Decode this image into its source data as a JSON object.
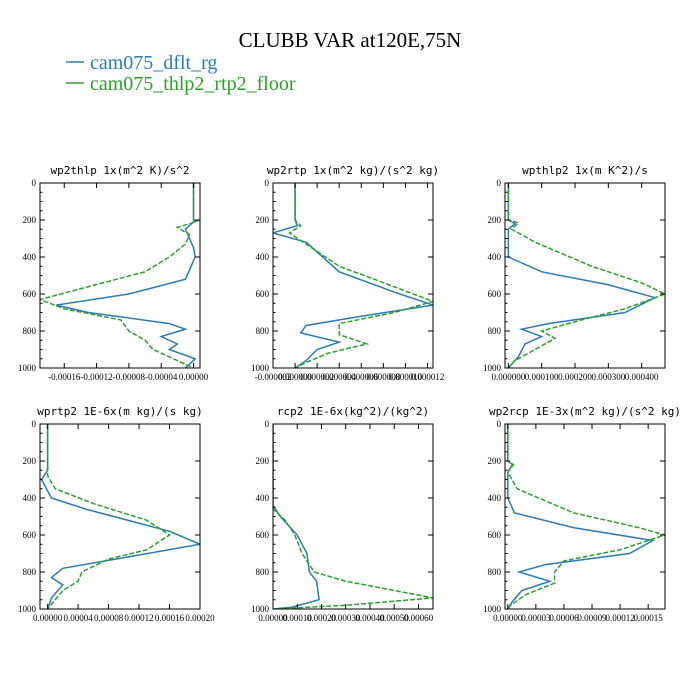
{
  "figure": {
    "title": "CLUBB VAR at120E,75N",
    "legend": [
      {
        "label": "cam075_dflt_rg",
        "color": "#2b7bb9",
        "dash": "solid"
      },
      {
        "label": "cam075_thlp2_rtp2_floor",
        "color": "#2ca02c",
        "dash": "dashed"
      }
    ]
  },
  "chart_data": [
    {
      "type": "line",
      "title": "wp2thlp  1x(m^2 K)/s^2",
      "xlim": [
        -0.00019,
        8e-06
      ],
      "ylim": [
        0,
        1000
      ],
      "y_inverted": true,
      "xticks": [
        -0.00016,
        -0.00012,
        -8e-05,
        -4e-05,
        0
      ],
      "xtick_labels": [
        "-0.00016",
        "-0.00012",
        "-0.00008",
        "-0.00004",
        "0.00000"
      ],
      "yticks": [
        0,
        200,
        400,
        600,
        800,
        1000
      ],
      "series": [
        {
          "name": "cam075_dflt_rg",
          "color": "#2b7bb9",
          "dash": "solid",
          "points": [
            [
              0,
              0
            ],
            [
              0,
              200
            ],
            [
              4e-06,
              205
            ],
            [
              0,
              210
            ],
            [
              -1e-05,
              250
            ],
            [
              -5e-06,
              300
            ],
            [
              0,
              350
            ],
            [
              2e-06,
              400
            ],
            [
              -1e-05,
              520
            ],
            [
              -8e-05,
              600
            ],
            [
              -0.00017,
              660
            ],
            [
              -0.00013,
              700
            ],
            [
              -3e-05,
              760
            ],
            [
              -1e-05,
              790
            ],
            [
              -4e-05,
              830
            ],
            [
              -2e-05,
              870
            ],
            [
              -3e-05,
              900
            ],
            [
              2e-06,
              950
            ],
            [
              -1e-05,
              1000
            ]
          ]
        },
        {
          "name": "cam075_thlp2_rtp2_floor",
          "color": "#2ca02c",
          "dash": "dashed",
          "points": [
            [
              0,
              0
            ],
            [
              0,
              200
            ],
            [
              3e-06,
              210
            ],
            [
              -2e-05,
              240
            ],
            [
              -5e-06,
              280
            ],
            [
              -1e-05,
              330
            ],
            [
              -3e-05,
              400
            ],
            [
              -6e-05,
              480
            ],
            [
              -0.00013,
              560
            ],
            [
              -0.00019,
              630
            ],
            [
              -0.00016,
              680
            ],
            [
              -9e-05,
              740
            ],
            [
              -8e-05,
              800
            ],
            [
              -6e-05,
              850
            ],
            [
              -5e-05,
              900
            ],
            [
              -2e-05,
              960
            ],
            [
              0,
              1000
            ]
          ]
        }
      ]
    },
    {
      "type": "line",
      "title": "wp2rtp  1x(m^2 kg)/(s^2 kg)",
      "xlim": [
        -2e-06,
        1.25e-05
      ],
      "ylim": [
        0,
        1000
      ],
      "y_inverted": true,
      "xticks": [
        -2e-06,
        0,
        2e-06,
        4e-06,
        6e-06,
        8e-06,
        1e-05,
        1.2e-05
      ],
      "xtick_labels": [
        "-0.000002",
        "0.000000",
        "0.000002",
        "0.000004",
        "0.000006",
        "0.000008",
        "0.000010",
        "0.000012"
      ],
      "yticks": [
        0,
        200,
        400,
        600,
        800,
        1000
      ],
      "series": [
        {
          "name": "cam075_dflt_rg",
          "color": "#2b7bb9",
          "dash": "solid",
          "points": [
            [
              0,
              0
            ],
            [
              0,
              200
            ],
            [
              2e-07,
              230
            ],
            [
              -2e-06,
              270
            ],
            [
              1e-06,
              320
            ],
            [
              4e-06,
              480
            ],
            [
              9e-06,
              590
            ],
            [
              1.25e-05,
              660
            ],
            [
              6e-06,
              720
            ],
            [
              1e-06,
              770
            ],
            [
              5e-07,
              810
            ],
            [
              4e-06,
              860
            ],
            [
              2e-06,
              900
            ],
            [
              1e-06,
              960
            ],
            [
              0,
              1000
            ]
          ]
        },
        {
          "name": "cam075_thlp2_rtp2_floor",
          "color": "#2ca02c",
          "dash": "dashed",
          "points": [
            [
              0,
              0
            ],
            [
              0,
              200
            ],
            [
              5e-07,
              230
            ],
            [
              -5e-07,
              270
            ],
            [
              1.5e-06,
              350
            ],
            [
              4e-06,
              450
            ],
            [
              8.5e-06,
              550
            ],
            [
              1.25e-05,
              640
            ],
            [
              9e-06,
              700
            ],
            [
              4e-06,
              760
            ],
            [
              4e-06,
              820
            ],
            [
              6.5e-06,
              870
            ],
            [
              3e-06,
              920
            ],
            [
              1e-06,
              970
            ],
            [
              0,
              1000
            ]
          ]
        }
      ]
    },
    {
      "type": "line",
      "title": "wpthlp2  1x(m K^2)/s",
      "xlim": [
        -1e-05,
        0.00047
      ],
      "ylim": [
        0,
        1000
      ],
      "y_inverted": true,
      "xticks": [
        0,
        0.0001,
        0.0002,
        0.0003,
        0.0004
      ],
      "xtick_labels": [
        "0.000000",
        "0.000100",
        "0.000200",
        "0.000300",
        "0.000400"
      ],
      "yticks": [
        0,
        200,
        400,
        600,
        800,
        1000
      ],
      "series": [
        {
          "name": "cam075_dflt_rg",
          "color": "#2b7bb9",
          "dash": "solid",
          "points": [
            [
              0,
              0
            ],
            [
              0,
              200
            ],
            [
              2e-05,
              220
            ],
            [
              0,
              250
            ],
            [
              0,
              400
            ],
            [
              0.0001,
              480
            ],
            [
              0.0003,
              550
            ],
            [
              0.00044,
              620
            ],
            [
              0.00035,
              700
            ],
            [
              0.00012,
              760
            ],
            [
              4e-05,
              790
            ],
            [
              0.0001,
              830
            ],
            [
              5e-05,
              870
            ],
            [
              3e-05,
              940
            ],
            [
              0,
              1000
            ]
          ]
        },
        {
          "name": "cam075_thlp2_rtp2_floor",
          "color": "#2ca02c",
          "dash": "dashed",
          "points": [
            [
              0,
              0
            ],
            [
              0,
              200
            ],
            [
              3e-05,
              215
            ],
            [
              1e-05,
              250
            ],
            [
              8e-05,
              320
            ],
            [
              0.00025,
              450
            ],
            [
              0.0004,
              540
            ],
            [
              0.00047,
              600
            ],
            [
              0.00035,
              680
            ],
            [
              0.00022,
              740
            ],
            [
              0.0001,
              800
            ],
            [
              0.00014,
              840
            ],
            [
              8e-05,
              900
            ],
            [
              2e-05,
              960
            ],
            [
              0,
              1000
            ]
          ]
        }
      ]
    },
    {
      "type": "line",
      "title": "wprtp2  1E-6x(m kg)/(s kg)",
      "xlim": [
        -1e-05,
        0.0002
      ],
      "ylim": [
        0,
        1000
      ],
      "y_inverted": true,
      "xticks": [
        0,
        4e-05,
        8e-05,
        0.00012,
        0.00016,
        0.0002
      ],
      "xtick_labels": [
        "0.00000",
        "0.00004",
        "0.00008",
        "0.00012",
        "0.00016",
        "0.00020"
      ],
      "yticks": [
        0,
        200,
        400,
        600,
        800,
        1000
      ],
      "series": [
        {
          "name": "cam075_dflt_rg",
          "color": "#2b7bb9",
          "dash": "solid",
          "points": [
            [
              0,
              0
            ],
            [
              0,
              250
            ],
            [
              -8e-06,
              300
            ],
            [
              5e-06,
              400
            ],
            [
              5e-05,
              460
            ],
            [
              0.00016,
              580
            ],
            [
              0.0002,
              650
            ],
            [
              9e-05,
              730
            ],
            [
              2e-05,
              780
            ],
            [
              5e-06,
              830
            ],
            [
              2e-05,
              870
            ],
            [
              5e-06,
              940
            ],
            [
              0,
              1000
            ]
          ]
        },
        {
          "name": "cam075_thlp2_rtp2_floor",
          "color": "#2ca02c",
          "dash": "dashed",
          "points": [
            [
              0,
              0
            ],
            [
              0,
              280
            ],
            [
              1e-05,
              350
            ],
            [
              6e-05,
              430
            ],
            [
              0.00013,
              520
            ],
            [
              0.00016,
              600
            ],
            [
              0.00013,
              680
            ],
            [
              8e-05,
              730
            ],
            [
              6e-05,
              770
            ],
            [
              4.5e-05,
              800
            ],
            [
              4e-05,
              850
            ],
            [
              2e-05,
              900
            ],
            [
              1e-05,
              950
            ],
            [
              0,
              1000
            ]
          ]
        }
      ]
    },
    {
      "type": "line",
      "title": "rcp2  1E-6x(kg^2)/(kg^2)",
      "xlim": [
        0,
        0.00066
      ],
      "ylim": [
        0,
        1000
      ],
      "y_inverted": true,
      "xticks": [
        0,
        0.0001,
        0.0002,
        0.0003,
        0.0004,
        0.0005,
        0.0006
      ],
      "xtick_labels": [
        "0.00000",
        "0.00010",
        "0.00020",
        "0.00030",
        "0.00040",
        "0.00050",
        "0.00060"
      ],
      "yticks": [
        0,
        200,
        400,
        600,
        800,
        1000
      ],
      "series": [
        {
          "name": "cam075_dflt_rg",
          "color": "#2b7bb9",
          "dash": "solid",
          "points": [
            [
              0,
              0
            ],
            [
              0,
              440
            ],
            [
              3e-05,
              500
            ],
            [
              0.0001,
              600
            ],
            [
              0.00014,
              700
            ],
            [
              0.00015,
              800
            ],
            [
              0.00018,
              850
            ],
            [
              0.00019,
              950
            ],
            [
              8e-05,
              990
            ],
            [
              0,
              1000
            ]
          ]
        },
        {
          "name": "cam075_thlp2_rtp2_floor",
          "color": "#2ca02c",
          "dash": "dashed",
          "points": [
            [
              0,
              0
            ],
            [
              0,
              460
            ],
            [
              5e-05,
              520
            ],
            [
              9e-05,
              600
            ],
            [
              0.00012,
              700
            ],
            [
              0.00015,
              760
            ],
            [
              0.00017,
              800
            ],
            [
              0.0003,
              850
            ],
            [
              0.0005,
              900
            ],
            [
              0.00066,
              940
            ],
            [
              0.0003,
              980
            ],
            [
              0,
              1000
            ]
          ]
        }
      ]
    },
    {
      "type": "line",
      "title": "wp2rcp  1E-3x(m^2 kg)/(s^2 kg)",
      "xlim": [
        -3e-06,
        0.000168
      ],
      "ylim": [
        0,
        1000
      ],
      "y_inverted": true,
      "xticks": [
        0,
        3e-05,
        6e-05,
        9e-05,
        0.00012,
        0.00015
      ],
      "xtick_labels": [
        "0.00000",
        "0.00003",
        "0.00006",
        "0.00009",
        "0.00012",
        "0.00015"
      ],
      "yticks": [
        0,
        200,
        400,
        600,
        800,
        1000
      ],
      "series": [
        {
          "name": "cam075_dflt_rg",
          "color": "#2b7bb9",
          "dash": "solid",
          "points": [
            [
              0,
              0
            ],
            [
              0,
              200
            ],
            [
              5e-06,
              220
            ],
            [
              0,
              260
            ],
            [
              0,
              400
            ],
            [
              7e-06,
              480
            ],
            [
              7e-05,
              560
            ],
            [
              0.000155,
              630
            ],
            [
              0.00013,
              700
            ],
            [
              4e-05,
              760
            ],
            [
              1.2e-05,
              800
            ],
            [
              4.5e-05,
              850
            ],
            [
              1.5e-05,
              900
            ],
            [
              5e-06,
              960
            ],
            [
              0,
              1000
            ]
          ]
        },
        {
          "name": "cam075_thlp2_rtp2_floor",
          "color": "#2ca02c",
          "dash": "dashed",
          "points": [
            [
              0,
              0
            ],
            [
              0,
              200
            ],
            [
              6e-06,
              220
            ],
            [
              0,
              260
            ],
            [
              1e-05,
              350
            ],
            [
              7e-05,
              480
            ],
            [
              0.00014,
              560
            ],
            [
              0.000168,
              600
            ],
            [
              0.00012,
              680
            ],
            [
              6e-05,
              740
            ],
            [
              5e-05,
              800
            ],
            [
              5e-05,
              860
            ],
            [
              2e-05,
              920
            ],
            [
              3e-06,
              980
            ],
            [
              0,
              1000
            ]
          ]
        }
      ]
    }
  ]
}
